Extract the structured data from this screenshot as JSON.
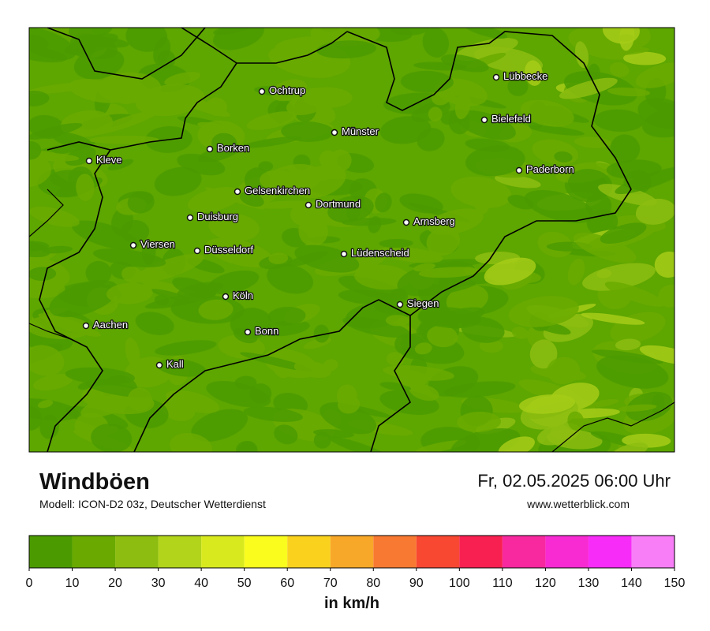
{
  "header": {
    "title": "Windböen",
    "subtitle": "Modell: ICON-D2 03z, Deutscher Wetterdienst",
    "date": "Fr, 02.05.2025 06:00 Uhr",
    "site": "www.wetterblick.com"
  },
  "map": {
    "cities": [
      "Ochtrup",
      "Lübbecke",
      "Bielefeld",
      "Münster",
      "Borken",
      "Kleve",
      "Paderborn",
      "Gelsenkirchen",
      "Dortmund",
      "Duisburg",
      "Arnsberg",
      "Viersen",
      "Düsseldorf",
      "Lüdenscheid",
      "Köln",
      "Siegen",
      "Aachen",
      "Bonn",
      "Kall"
    ]
  },
  "legend": {
    "ticks": [
      0,
      10,
      20,
      30,
      40,
      50,
      60,
      70,
      80,
      90,
      100,
      110,
      120,
      130,
      140,
      150
    ],
    "colors": [
      "#4b9b00",
      "#6aaa00",
      "#8cbd10",
      "#b2d41a",
      "#d8ea1e",
      "#fafc1e",
      "#fad21e",
      "#f8a828",
      "#f87a32",
      "#f84832",
      "#f82050",
      "#f8289e",
      "#f82ad2",
      "#f82cf8",
      "#f87ef8"
    ],
    "unit": "in km/h"
  }
}
